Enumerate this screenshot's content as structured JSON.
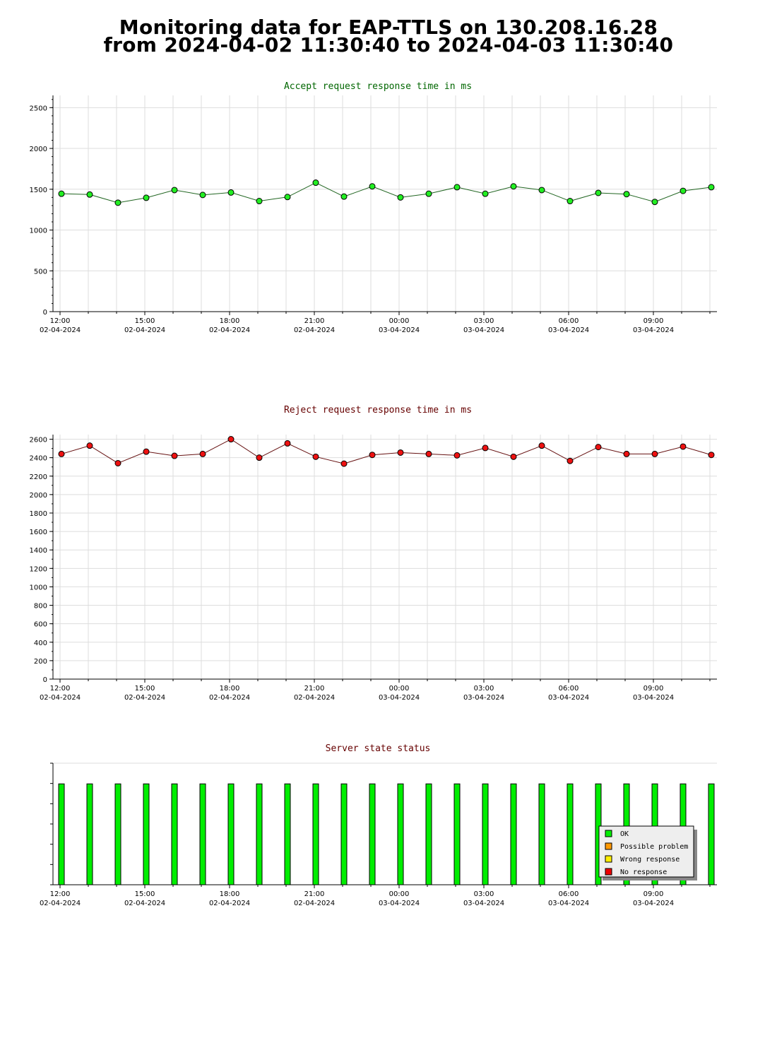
{
  "page": {
    "title_line_1": "Monitoring data for EAP-TTLS on 130.208.16.28",
    "title_line_2": "from 2024-04-02 11:30:40 to 2024-04-03 11:30:40"
  },
  "colors": {
    "accept_title": "#006600",
    "reject_title": "#660000",
    "status_title": "#660000",
    "accept_point": "#22ee22",
    "reject_point": "#ee1111",
    "ok": "#00ee00",
    "possible_problem": "#ff9900",
    "wrong_response": "#ffee00",
    "no_response": "#ee0000",
    "grid": "#dddddd"
  },
  "chart_data": [
    {
      "type": "line",
      "title": "Accept request response time in ms",
      "xlabel": "",
      "ylabel": "",
      "x_range_hours": [
        -0.25,
        23.25
      ],
      "x_ticks": [
        {
          "time": "12:00",
          "date": "02-04-2024"
        },
        {
          "time": "15:00",
          "date": "02-04-2024"
        },
        {
          "time": "18:00",
          "date": "02-04-2024"
        },
        {
          "time": "21:00",
          "date": "02-04-2024"
        },
        {
          "time": "00:00",
          "date": "03-04-2024"
        },
        {
          "time": "03:00",
          "date": "03-04-2024"
        },
        {
          "time": "06:00",
          "date": "03-04-2024"
        },
        {
          "time": "09:00",
          "date": "03-04-2024"
        }
      ],
      "x_hours": [
        0.05,
        1.05,
        2.05,
        3.05,
        4.05,
        5.05,
        6.05,
        7.05,
        8.05,
        9.05,
        10.05,
        11.05,
        12.05,
        13.05,
        14.05,
        15.05,
        16.05,
        17.05,
        18.05,
        19.05,
        20.05,
        21.05,
        22.05,
        23.05
      ],
      "values": [
        1445,
        1435,
        1335,
        1395,
        1490,
        1430,
        1460,
        1355,
        1405,
        1580,
        1410,
        1535,
        1400,
        1445,
        1525,
        1445,
        1535,
        1490,
        1355,
        1455,
        1440,
        1345,
        1480,
        1525
      ],
      "ylim": [
        0,
        2650
      ],
      "y_ticks": [
        0,
        500,
        1000,
        1500,
        2000,
        2500
      ],
      "y_minor_step": 100,
      "grid": true,
      "marker_color": "#22ee22"
    },
    {
      "type": "line",
      "title": "Reject request response time in ms",
      "xlabel": "",
      "ylabel": "",
      "x_range_hours": [
        -0.25,
        23.25
      ],
      "x_ticks": [
        {
          "time": "12:00",
          "date": "02-04-2024"
        },
        {
          "time": "15:00",
          "date": "02-04-2024"
        },
        {
          "time": "18:00",
          "date": "02-04-2024"
        },
        {
          "time": "21:00",
          "date": "02-04-2024"
        },
        {
          "time": "00:00",
          "date": "03-04-2024"
        },
        {
          "time": "03:00",
          "date": "03-04-2024"
        },
        {
          "time": "06:00",
          "date": "03-04-2024"
        },
        {
          "time": "09:00",
          "date": "03-04-2024"
        }
      ],
      "x_hours": [
        0.05,
        1.05,
        2.05,
        3.05,
        4.05,
        5.05,
        6.05,
        7.05,
        8.05,
        9.05,
        10.05,
        11.05,
        12.05,
        13.05,
        14.05,
        15.05,
        16.05,
        17.05,
        18.05,
        19.05,
        20.05,
        21.05,
        22.05,
        23.05
      ],
      "values": [
        2440,
        2530,
        2340,
        2465,
        2420,
        2440,
        2600,
        2400,
        2555,
        2410,
        2335,
        2430,
        2455,
        2440,
        2425,
        2505,
        2410,
        2530,
        2365,
        2515,
        2440,
        2440,
        2520,
        2430
      ],
      "ylim": [
        0,
        2650
      ],
      "y_ticks": [
        0,
        200,
        400,
        600,
        800,
        1000,
        1200,
        1400,
        1600,
        1800,
        2000,
        2200,
        2400,
        2600
      ],
      "y_minor_step": 100,
      "grid": true,
      "marker_color": "#ee1111"
    },
    {
      "type": "bar",
      "title": "Server state status",
      "xlabel": "",
      "ylabel": "",
      "x_range_hours": [
        -0.25,
        23.25
      ],
      "x_ticks": [
        {
          "time": "12:00",
          "date": "02-04-2024"
        },
        {
          "time": "15:00",
          "date": "02-04-2024"
        },
        {
          "time": "18:00",
          "date": "02-04-2024"
        },
        {
          "time": "21:00",
          "date": "02-04-2024"
        },
        {
          "time": "00:00",
          "date": "03-04-2024"
        },
        {
          "time": "03:00",
          "date": "03-04-2024"
        },
        {
          "time": "06:00",
          "date": "03-04-2024"
        },
        {
          "time": "09:00",
          "date": "03-04-2024"
        }
      ],
      "x_hours": [
        0.05,
        1.05,
        2.05,
        3.05,
        4.05,
        5.05,
        6.05,
        7.05,
        8.05,
        9.05,
        10.05,
        11.05,
        12.05,
        13.05,
        14.05,
        15.05,
        16.05,
        17.05,
        18.05,
        19.05,
        20.05,
        21.05,
        22.05,
        23.05
      ],
      "states": [
        "OK",
        "OK",
        "OK",
        "OK",
        "OK",
        "OK",
        "OK",
        "OK",
        "OK",
        "OK",
        "OK",
        "OK",
        "OK",
        "OK",
        "OK",
        "OK",
        "OK",
        "OK",
        "OK",
        "OK",
        "OK",
        "OK",
        "OK",
        "OK"
      ],
      "bar_level": 0.83,
      "legend": [
        {
          "label": "OK",
          "color": "#00ee00"
        },
        {
          "label": "Possible problem",
          "color": "#ff9900"
        },
        {
          "label": "Wrong response",
          "color": "#ffee00"
        },
        {
          "label": "No response",
          "color": "#ee0000"
        }
      ],
      "legend_position": "bottom-right",
      "grid": false
    }
  ]
}
